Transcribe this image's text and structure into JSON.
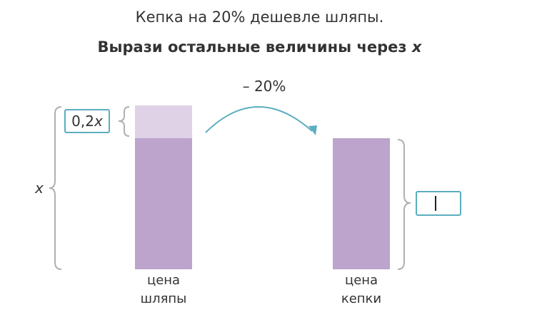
{
  "problem": {
    "statement": "Кепка на 20% дешевле шляпы.",
    "task_prefix": "Вырази остальные величины через",
    "task_variable": "x"
  },
  "diagram": {
    "arrow_label": "– 20%",
    "hat_total_label": "x",
    "hat_part_value": "0,2",
    "hat_part_variable": "x",
    "hat_caption_line1": "цена",
    "hat_caption_line2": "шляпы",
    "cap_caption_line1": "цена",
    "cap_caption_line2": "кепки",
    "answer_value": ""
  },
  "colors": {
    "bar_main": "#bca4cc",
    "bar_light": "#dfd2e7",
    "accent": "#5aaebf",
    "brace": "#b0b0b0"
  }
}
